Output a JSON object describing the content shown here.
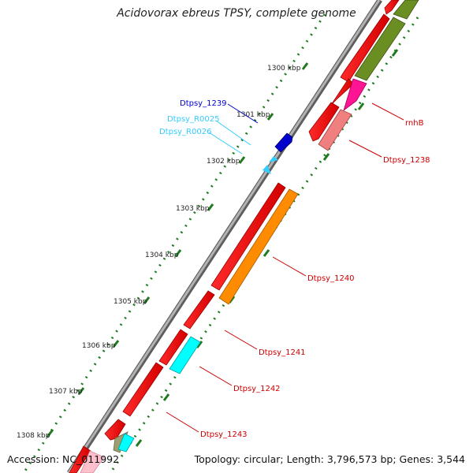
{
  "title": "Acidovorax ebreus TPSY, complete genome",
  "footer": {
    "accession": "Accession: NC_011992",
    "topology": "Topology: circular; Length: 3,796,573 bp; Genes: 3,544"
  },
  "colors": {
    "backbone": "#8c8c8c",
    "tick": "#1f7a1f",
    "cds": "#ff0000",
    "trna": "#33ccff",
    "misc_label": "#0000cc"
  },
  "ruler_labels": [
    "1300 kbp",
    "1301 kbp",
    "1302 kbp",
    "1303 kbp",
    "1304 kbp",
    "1305 kbp",
    "1306 kbp",
    "1307 kbp",
    "1308 kbp"
  ],
  "features": [
    {
      "label": "Dtpsy_1239",
      "color": "#0000cc"
    },
    {
      "label": "Dtpsy_R0025",
      "color": "#33ccff"
    },
    {
      "label": "Dtpsy_R0026",
      "color": "#33ccff"
    },
    {
      "label": "rnhB",
      "color": "#cc0000"
    },
    {
      "label": "Dtpsy_1238",
      "color": "#cc0000"
    },
    {
      "label": "Dtpsy_1240",
      "color": "#cc0000"
    },
    {
      "label": "Dtpsy_1241",
      "color": "#cc0000"
    },
    {
      "label": "Dtpsy_1242",
      "color": "#cc0000"
    },
    {
      "label": "Dtpsy_1243",
      "color": "#cc0000"
    }
  ]
}
